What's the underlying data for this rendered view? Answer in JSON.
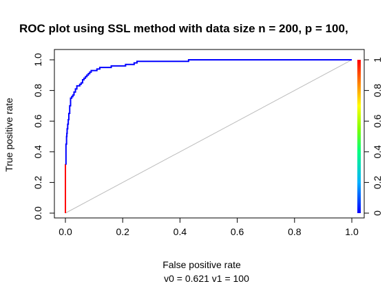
{
  "chart_data": {
    "type": "line",
    "title": "ROC plot using SSL method with data size n = 200, p = 100,",
    "xlabel": "False positive rate",
    "ylabel": "True positive rate",
    "subtitle": "v0 =  0.621 v1 = 100",
    "xlim": [
      0,
      1
    ],
    "ylim": [
      0,
      1
    ],
    "xticks": [
      "0.0",
      "0.2",
      "0.4",
      "0.6",
      "0.8",
      "1.0"
    ],
    "yticks": [
      "0.0",
      "0.2",
      "0.4",
      "0.6",
      "0.8",
      "1.0"
    ],
    "colorbar_ticks": [
      "0",
      "0.2",
      "0.4",
      "0.6",
      "0.8",
      "1"
    ],
    "grid": false,
    "reference_line": {
      "x": [
        0,
        1
      ],
      "y": [
        0,
        1
      ],
      "color": "#bbbbbb"
    },
    "series": [
      {
        "color_low": "#ff0000",
        "color_high": "#0000ff",
        "x": [
          0,
          0,
          0.002,
          0.004,
          0.005,
          0.006,
          0.008,
          0.01,
          0.012,
          0.015,
          0.018,
          0.022,
          0.026,
          0.03,
          0.035,
          0.04,
          0.046,
          0.05,
          0.055,
          0.06,
          0.065,
          0.07,
          0.075,
          0.08,
          0.085,
          0.09,
          0.1,
          0.11,
          0.12,
          0.13,
          0.14,
          0.16,
          0.18,
          0.2,
          0.21,
          0.22,
          0.24,
          0.25,
          0.3,
          0.35,
          0.43,
          0.43,
          0.6,
          1.0
        ],
        "y": [
          0,
          0.32,
          0.45,
          0.5,
          0.52,
          0.55,
          0.58,
          0.61,
          0.65,
          0.7,
          0.75,
          0.76,
          0.77,
          0.79,
          0.81,
          0.83,
          0.83,
          0.84,
          0.85,
          0.87,
          0.88,
          0.89,
          0.9,
          0.91,
          0.92,
          0.93,
          0.93,
          0.94,
          0.95,
          0.95,
          0.95,
          0.96,
          0.96,
          0.96,
          0.97,
          0.97,
          0.98,
          0.99,
          0.99,
          0.99,
          0.99,
          1.0,
          1.0,
          1.0
        ]
      }
    ]
  }
}
